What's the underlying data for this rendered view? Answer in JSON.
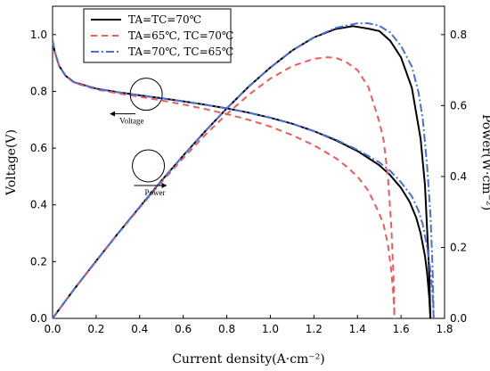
{
  "chart_data": {
    "type": "line",
    "title": "",
    "xlabel": "Current density(A·cm⁻²)",
    "ylabel_left": "Voltage(V)",
    "ylabel_right": "Power(W·cm⁻²)",
    "xlim": [
      0,
      1.8
    ],
    "ylim_left": [
      0,
      1.1
    ],
    "ylim_right": [
      0,
      0.88
    ],
    "x_ticks": [
      "0.0",
      "0.2",
      "0.4",
      "0.6",
      "0.8",
      "1.0",
      "1.2",
      "1.4",
      "1.6",
      "1.8"
    ],
    "y_left_ticks": [
      "0.0",
      "0.2",
      "0.4",
      "0.6",
      "0.8",
      "1.0"
    ],
    "y_right_ticks": [
      "0.0",
      "0.2",
      "0.4",
      "0.6",
      "0.8"
    ],
    "grid": false,
    "legend_position": "top-center",
    "annotations": [
      {
        "text": "Voltage",
        "target": "voltage curves",
        "x": 0.43,
        "y": 0.79
      },
      {
        "text": "Power",
        "target": "power curves",
        "x": 0.44,
        "y": 0.43
      }
    ],
    "series": [
      {
        "name": "TA=TC=70℃",
        "color": "#000000",
        "style": "solid",
        "voltage": [
          [
            0.0,
            0.98
          ],
          [
            0.01,
            0.94
          ],
          [
            0.03,
            0.89
          ],
          [
            0.06,
            0.855
          ],
          [
            0.1,
            0.832
          ],
          [
            0.2,
            0.81
          ],
          [
            0.3,
            0.797
          ],
          [
            0.4,
            0.786
          ],
          [
            0.5,
            0.776
          ],
          [
            0.6,
            0.765
          ],
          [
            0.7,
            0.753
          ],
          [
            0.8,
            0.74
          ],
          [
            0.9,
            0.725
          ],
          [
            1.0,
            0.707
          ],
          [
            1.1,
            0.686
          ],
          [
            1.2,
            0.66
          ],
          [
            1.3,
            0.628
          ],
          [
            1.4,
            0.59
          ],
          [
            1.5,
            0.54
          ],
          [
            1.55,
            0.505
          ],
          [
            1.6,
            0.46
          ],
          [
            1.64,
            0.41
          ],
          [
            1.67,
            0.355
          ],
          [
            1.69,
            0.3
          ],
          [
            1.71,
            0.22
          ],
          [
            1.72,
            0.16
          ],
          [
            1.73,
            0.07
          ],
          [
            1.735,
            0.0
          ]
        ],
        "power": [
          [
            0.0,
            0.0
          ],
          [
            0.1,
            0.083
          ],
          [
            0.2,
            0.162
          ],
          [
            0.3,
            0.239
          ],
          [
            0.4,
            0.314
          ],
          [
            0.5,
            0.388
          ],
          [
            0.6,
            0.459
          ],
          [
            0.7,
            0.527
          ],
          [
            0.8,
            0.592
          ],
          [
            0.9,
            0.653
          ],
          [
            1.0,
            0.707
          ],
          [
            1.1,
            0.755
          ],
          [
            1.2,
            0.792
          ],
          [
            1.3,
            0.816
          ],
          [
            1.38,
            0.824
          ],
          [
            1.45,
            0.817
          ],
          [
            1.5,
            0.81
          ],
          [
            1.55,
            0.783
          ],
          [
            1.6,
            0.736
          ],
          [
            1.65,
            0.65
          ],
          [
            1.69,
            0.507
          ],
          [
            1.71,
            0.376
          ],
          [
            1.73,
            0.121
          ],
          [
            1.735,
            0.0
          ]
        ]
      },
      {
        "name": "TA=65℃, TC=70℃",
        "color": "#f05a5a",
        "style": "dashed",
        "voltage": [
          [
            0.0,
            0.98
          ],
          [
            0.01,
            0.94
          ],
          [
            0.03,
            0.89
          ],
          [
            0.06,
            0.853
          ],
          [
            0.1,
            0.83
          ],
          [
            0.2,
            0.807
          ],
          [
            0.3,
            0.793
          ],
          [
            0.4,
            0.781
          ],
          [
            0.5,
            0.768
          ],
          [
            0.6,
            0.754
          ],
          [
            0.7,
            0.738
          ],
          [
            0.8,
            0.72
          ],
          [
            0.9,
            0.7
          ],
          [
            1.0,
            0.676
          ],
          [
            1.1,
            0.646
          ],
          [
            1.2,
            0.61
          ],
          [
            1.3,
            0.565
          ],
          [
            1.35,
            0.535
          ],
          [
            1.4,
            0.5
          ],
          [
            1.45,
            0.45
          ],
          [
            1.5,
            0.37
          ],
          [
            1.52,
            0.33
          ],
          [
            1.54,
            0.26
          ],
          [
            1.555,
            0.17
          ],
          [
            1.565,
            0.08
          ],
          [
            1.57,
            0.0
          ]
        ],
        "power": [
          [
            0.0,
            0.0
          ],
          [
            0.1,
            0.083
          ],
          [
            0.2,
            0.161
          ],
          [
            0.3,
            0.238
          ],
          [
            0.4,
            0.312
          ],
          [
            0.5,
            0.384
          ],
          [
            0.6,
            0.452
          ],
          [
            0.7,
            0.517
          ],
          [
            0.8,
            0.576
          ],
          [
            0.9,
            0.63
          ],
          [
            1.0,
            0.676
          ],
          [
            1.1,
            0.711
          ],
          [
            1.2,
            0.732
          ],
          [
            1.26,
            0.736
          ],
          [
            1.3,
            0.735
          ],
          [
            1.35,
            0.722
          ],
          [
            1.4,
            0.7
          ],
          [
            1.45,
            0.653
          ],
          [
            1.5,
            0.555
          ],
          [
            1.52,
            0.502
          ],
          [
            1.54,
            0.4
          ],
          [
            1.555,
            0.264
          ],
          [
            1.565,
            0.125
          ],
          [
            1.57,
            0.0
          ]
        ]
      },
      {
        "name": "TA=70℃, TC=65℃",
        "color": "#4a6fdc",
        "style": "dashdot",
        "voltage": [
          [
            0.0,
            0.98
          ],
          [
            0.01,
            0.94
          ],
          [
            0.03,
            0.89
          ],
          [
            0.06,
            0.855
          ],
          [
            0.1,
            0.832
          ],
          [
            0.2,
            0.81
          ],
          [
            0.3,
            0.797
          ],
          [
            0.4,
            0.786
          ],
          [
            0.5,
            0.776
          ],
          [
            0.6,
            0.765
          ],
          [
            0.7,
            0.753
          ],
          [
            0.8,
            0.74
          ],
          [
            0.9,
            0.725
          ],
          [
            1.0,
            0.707
          ],
          [
            1.1,
            0.686
          ],
          [
            1.2,
            0.66
          ],
          [
            1.3,
            0.63
          ],
          [
            1.4,
            0.594
          ],
          [
            1.5,
            0.55
          ],
          [
            1.55,
            0.52
          ],
          [
            1.6,
            0.48
          ],
          [
            1.65,
            0.43
          ],
          [
            1.68,
            0.38
          ],
          [
            1.7,
            0.33
          ],
          [
            1.72,
            0.25
          ],
          [
            1.735,
            0.17
          ],
          [
            1.745,
            0.08
          ],
          [
            1.75,
            0.0
          ]
        ],
        "power": [
          [
            0.0,
            0.0
          ],
          [
            0.1,
            0.083
          ],
          [
            0.2,
            0.162
          ],
          [
            0.3,
            0.239
          ],
          [
            0.4,
            0.314
          ],
          [
            0.5,
            0.388
          ],
          [
            0.6,
            0.459
          ],
          [
            0.7,
            0.527
          ],
          [
            0.8,
            0.592
          ],
          [
            0.9,
            0.653
          ],
          [
            1.0,
            0.707
          ],
          [
            1.1,
            0.755
          ],
          [
            1.2,
            0.792
          ],
          [
            1.3,
            0.819
          ],
          [
            1.4,
            0.832
          ],
          [
            1.45,
            0.832
          ],
          [
            1.5,
            0.825
          ],
          [
            1.55,
            0.806
          ],
          [
            1.6,
            0.768
          ],
          [
            1.65,
            0.71
          ],
          [
            1.68,
            0.638
          ],
          [
            1.7,
            0.561
          ],
          [
            1.72,
            0.43
          ],
          [
            1.735,
            0.295
          ],
          [
            1.745,
            0.14
          ],
          [
            1.75,
            0.0
          ]
        ]
      }
    ]
  }
}
